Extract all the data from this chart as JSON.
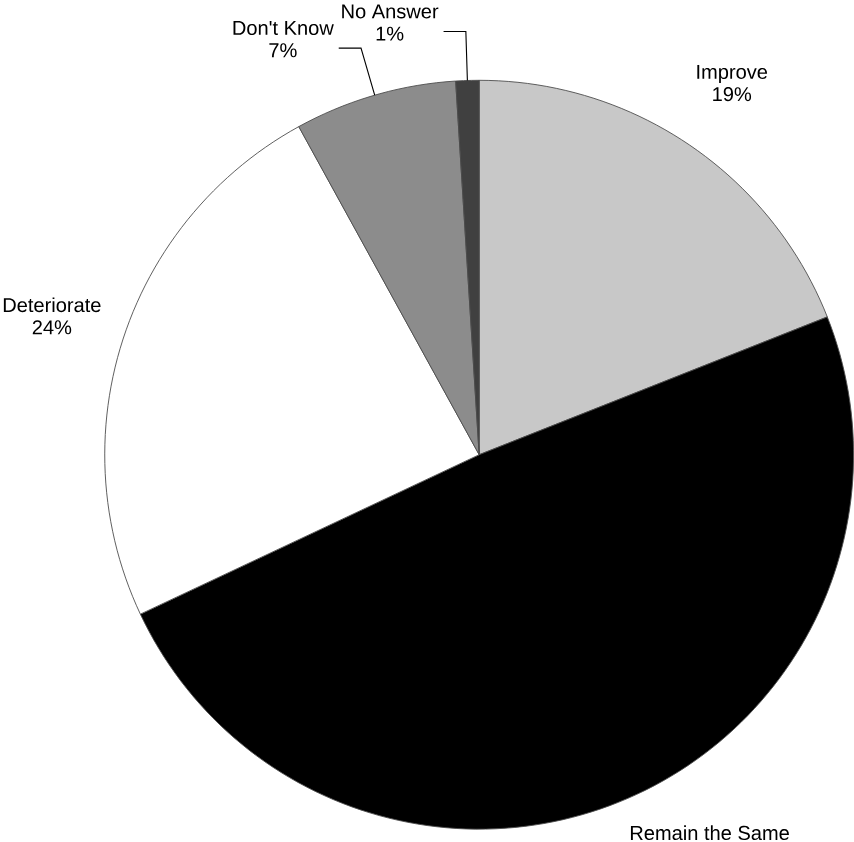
{
  "chart_data": {
    "type": "pie",
    "categories": [
      "Improve",
      "Remain the Same",
      "Deteriorate",
      "Don't Know",
      "No Answer"
    ],
    "values": [
      19,
      49,
      24,
      7,
      1
    ],
    "value_labels": [
      "19%",
      null,
      "24%",
      "7%",
      "1%"
    ],
    "colors": [
      "#c8c8c8",
      "#000000",
      "#ffffff",
      "#8c8c8c",
      "#404040"
    ],
    "legend": false
  }
}
